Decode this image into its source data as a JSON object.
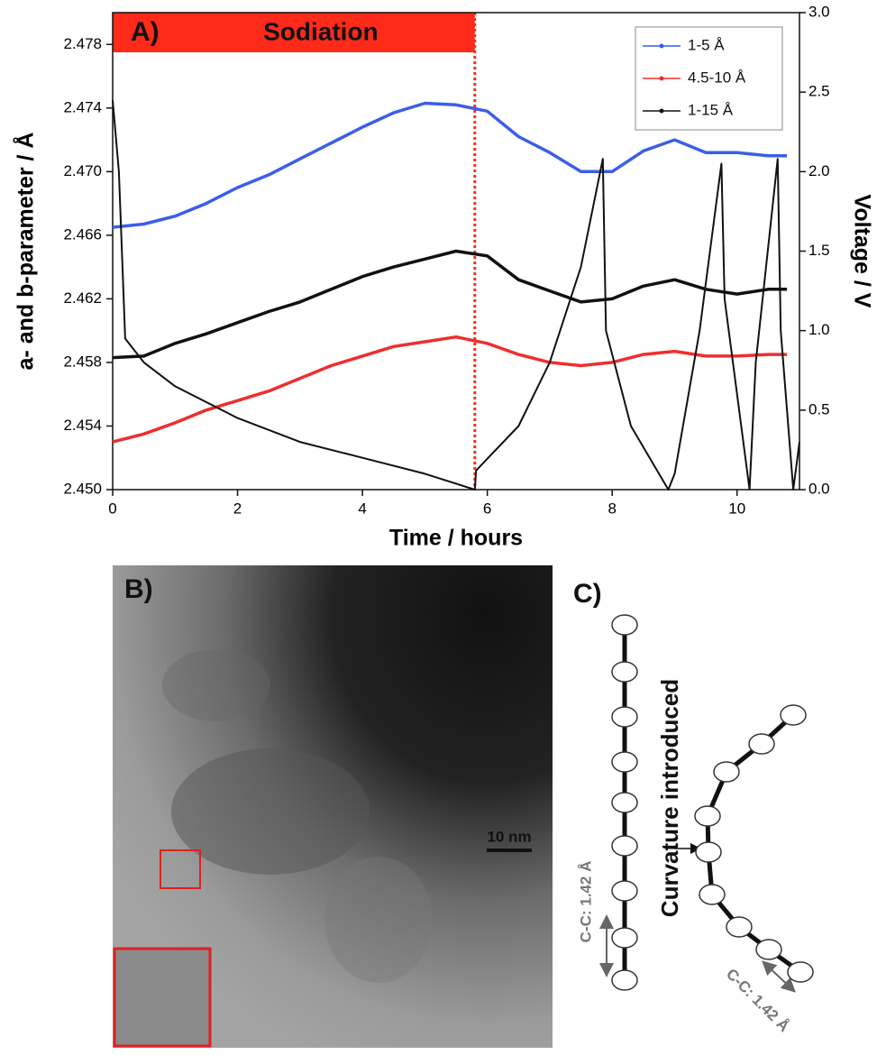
{
  "chart_data": {
    "type": "line",
    "panel_label": "A)",
    "x_label": "Time / hours",
    "y_label": "a- and b-parameter / Å",
    "y2_label": "Voltage / V",
    "sodiation": {
      "label": "Sodiation",
      "start": 0,
      "end": 5.8,
      "color": "#ff2a1a"
    },
    "xlim": [
      0,
      11
    ],
    "xticks": [
      0,
      2,
      4,
      6,
      8,
      10
    ],
    "ylim": [
      2.45,
      2.48
    ],
    "yticks": [
      {
        "value": 2.45,
        "label": "2.450"
      },
      2.454,
      2.458,
      2.462,
      2.466,
      {
        "value": 2.47,
        "label": "2.470"
      },
      2.474,
      2.478
    ],
    "y2lim": [
      0,
      3
    ],
    "y2ticks": [
      {
        "value": 0,
        "label": "0.0"
      },
      0.5,
      {
        "value": 1,
        "label": "1.0"
      },
      1.5,
      {
        "value": 2,
        "label": "2.0"
      },
      2.5,
      {
        "value": 3,
        "label": "3.0"
      }
    ],
    "legend": "top-right",
    "x": [
      0,
      0.5,
      1,
      1.5,
      2,
      2.5,
      3,
      3.5,
      4,
      4.5,
      5,
      5.5,
      6,
      6.5,
      7,
      7.5,
      8,
      8.5,
      9,
      9.5,
      10,
      10.5,
      10.8
    ],
    "series": [
      {
        "name": "1-5 Å",
        "color": "#3b5ee8",
        "values": [
          2.4665,
          2.4667,
          2.4672,
          2.468,
          2.469,
          2.4698,
          2.4708,
          2.4718,
          2.4728,
          2.4737,
          2.4743,
          2.4742,
          2.4738,
          2.4722,
          2.4712,
          2.47,
          2.47,
          2.4713,
          2.472,
          2.4712,
          2.4712,
          2.471,
          2.471
        ]
      },
      {
        "name": "4.5-10 Å",
        "color": "#ee2e2e",
        "values": [
          2.453,
          2.4535,
          2.4542,
          2.455,
          2.4556,
          2.4562,
          2.457,
          2.4578,
          2.4584,
          2.459,
          2.4593,
          2.4596,
          2.4592,
          2.4585,
          2.458,
          2.4578,
          2.458,
          2.4585,
          2.4587,
          2.4584,
          2.4584,
          2.4585,
          2.4585
        ]
      },
      {
        "name": "1-15 Å",
        "color": "#111111",
        "values": [
          2.4583,
          2.4584,
          2.4592,
          2.4598,
          2.4605,
          2.4612,
          2.4618,
          2.4626,
          2.4634,
          2.464,
          2.4645,
          2.465,
          2.4647,
          2.4632,
          2.4625,
          2.4618,
          2.462,
          2.4628,
          2.4632,
          2.4626,
          2.4623,
          2.4626,
          2.4626
        ]
      },
      {
        "color": "#111111",
        "axis": "y2",
        "x": [
          0,
          0.1,
          0.2,
          0.5,
          1,
          2,
          3,
          4,
          5,
          5.8,
          5.82,
          6.5,
          7,
          7.5,
          7.85,
          7.9,
          8.3,
          8.9,
          9,
          9.4,
          9.75,
          9.8,
          10.2,
          10.3,
          10.65,
          10.7,
          10.9,
          11
        ],
        "values": [
          2.45,
          2.0,
          0.95,
          0.8,
          0.65,
          0.45,
          0.3,
          0.2,
          0.1,
          0.0,
          0.12,
          0.4,
          0.8,
          1.4,
          2.08,
          1.0,
          0.4,
          0.0,
          0.1,
          1.0,
          2.05,
          1.2,
          0.0,
          0.8,
          2.08,
          1.0,
          0.0,
          0.3
        ]
      }
    ]
  },
  "panel_b": {
    "label": "B)",
    "scale_bar": "10 nm"
  },
  "panel_c": {
    "label": "C)",
    "annotation": "Curvature introduced",
    "bond_labels": [
      "C-C: 1.42 Å",
      "C-C: 1.42 Å"
    ]
  }
}
